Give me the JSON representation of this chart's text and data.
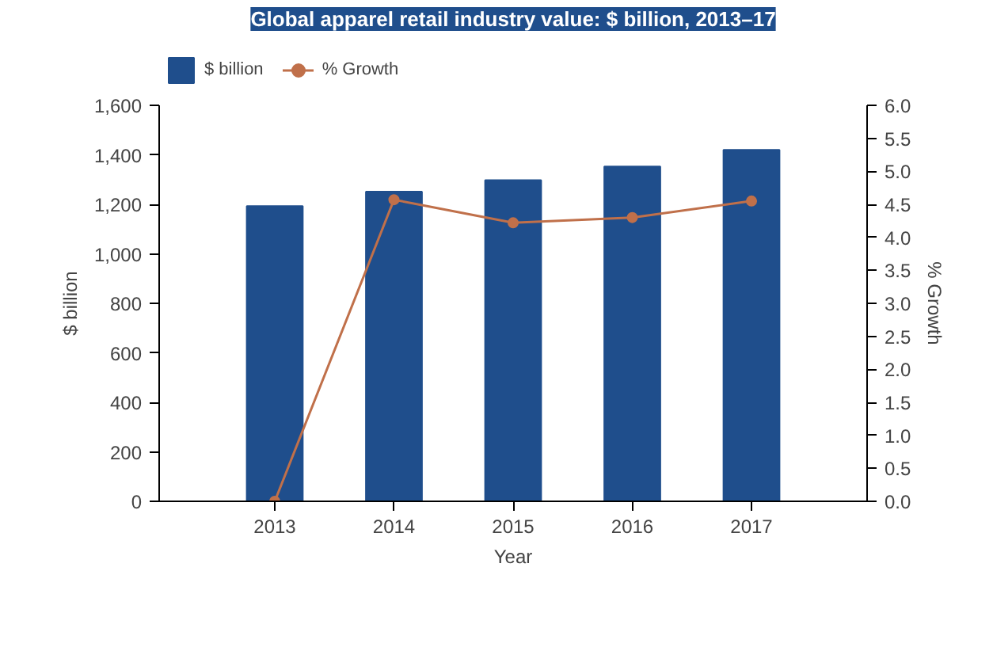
{
  "chart_data": {
    "type": "bar",
    "title": "Global apparel retail industry value: $ billion, 2013–17",
    "xlabel": "Year",
    "ylabel": "$ billion",
    "y2label": "% Growth",
    "categories": [
      "2013",
      "2014",
      "2015",
      "2016",
      "2017"
    ],
    "series": [
      {
        "name": "$ billion",
        "color": "#1f4e8c",
        "values": [
          1193,
          1251,
          1298,
          1353,
          1420
        ]
      },
      {
        "name": "% Growth",
        "type": "line",
        "axis": "y2",
        "color": "#c0704a",
        "marker": "circle",
        "values": [
          0,
          4.57,
          4.22,
          4.3,
          4.55
        ]
      }
    ],
    "ylim": [
      0,
      1600
    ],
    "yticks": [
      0,
      {
        "value": 200,
        "label": "200"
      },
      {
        "value": 400,
        "label": "400"
      },
      {
        "value": 600,
        "label": "600"
      },
      {
        "value": 800,
        "label": "800"
      },
      {
        "value": 1000,
        "label": "1,000"
      },
      {
        "value": 1200,
        "label": "1,200"
      },
      {
        "value": 1400,
        "label": "1,400"
      },
      {
        "value": 1600,
        "label": "1,600"
      }
    ],
    "y2lim": [
      0,
      6
    ],
    "y2ticks": [
      {
        "value": 0,
        "label": "0.0"
      },
      0.5,
      {
        "value": 1,
        "label": "1.0"
      },
      1.5,
      {
        "value": 2,
        "label": "2.0"
      },
      2.5,
      {
        "value": 3,
        "label": "3.0"
      },
      3.5,
      {
        "value": 4,
        "label": "4.0"
      },
      4.5,
      {
        "value": 5,
        "label": "5.0"
      },
      5.5,
      {
        "value": 6,
        "label": "6.0"
      }
    ],
    "legend": "top left",
    "grid": false
  }
}
